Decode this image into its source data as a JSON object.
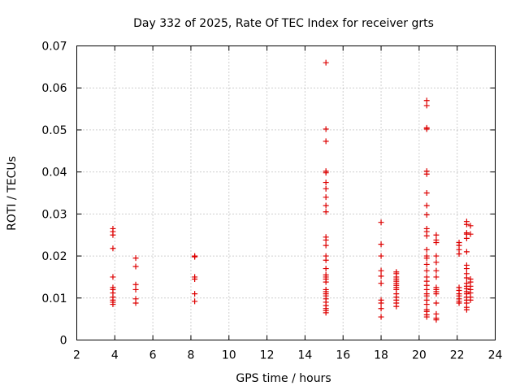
{
  "chart_data": {
    "type": "scatter",
    "title": "Day 332 of 2025, Rate Of TEC Index for receiver grts",
    "xlabel": "GPS time / hours",
    "ylabel": "ROTI / TECUs",
    "xlim": [
      2,
      24
    ],
    "ylim": [
      0,
      0.07
    ],
    "xticks": [
      2,
      4,
      6,
      8,
      10,
      12,
      14,
      16,
      18,
      20,
      22,
      24
    ],
    "yticks": [
      0,
      0.01,
      0.02,
      0.03,
      0.04,
      0.05,
      0.06,
      0.07
    ],
    "ytick_labels": [
      "0",
      "0.01",
      "0.02",
      "0.03",
      "0.04",
      "0.05",
      "0.06",
      "0.07"
    ],
    "grid": true,
    "marker": "+",
    "color": "#dd0000",
    "series": [
      {
        "points": [
          [
            3.9,
            0.0265
          ],
          [
            3.9,
            0.0258
          ],
          [
            3.9,
            0.025
          ],
          [
            3.9,
            0.0218
          ],
          [
            3.9,
            0.015
          ],
          [
            3.9,
            0.0125
          ],
          [
            3.9,
            0.012
          ],
          [
            3.9,
            0.0112
          ],
          [
            3.9,
            0.0102
          ],
          [
            3.9,
            0.0095
          ],
          [
            3.9,
            0.009
          ],
          [
            3.9,
            0.0085
          ],
          [
            5.1,
            0.0195
          ],
          [
            5.1,
            0.0175
          ],
          [
            5.1,
            0.0132
          ],
          [
            5.1,
            0.012
          ],
          [
            5.1,
            0.0098
          ],
          [
            5.1,
            0.0088
          ],
          [
            8.2,
            0.02
          ],
          [
            8.2,
            0.0198
          ],
          [
            8.2,
            0.015
          ],
          [
            8.2,
            0.0145
          ],
          [
            8.2,
            0.011
          ],
          [
            8.2,
            0.0092
          ],
          [
            15.1,
            0.066
          ],
          [
            15.1,
            0.0502
          ],
          [
            15.1,
            0.0473
          ],
          [
            15.1,
            0.0402
          ],
          [
            15.1,
            0.0398
          ],
          [
            15.1,
            0.0375
          ],
          [
            15.1,
            0.036
          ],
          [
            15.1,
            0.034
          ],
          [
            15.1,
            0.032
          ],
          [
            15.1,
            0.0305
          ],
          [
            15.1,
            0.0245
          ],
          [
            15.1,
            0.0238
          ],
          [
            15.1,
            0.0225
          ],
          [
            15.1,
            0.02
          ],
          [
            15.1,
            0.019
          ],
          [
            15.1,
            0.017
          ],
          [
            15.1,
            0.0155
          ],
          [
            15.1,
            0.015
          ],
          [
            15.1,
            0.0145
          ],
          [
            15.1,
            0.0138
          ],
          [
            15.1,
            0.012
          ],
          [
            15.1,
            0.0115
          ],
          [
            15.1,
            0.011
          ],
          [
            15.1,
            0.0105
          ],
          [
            15.1,
            0.0098
          ],
          [
            15.1,
            0.009
          ],
          [
            15.1,
            0.0082
          ],
          [
            15.1,
            0.0075
          ],
          [
            15.1,
            0.007
          ],
          [
            15.1,
            0.0065
          ],
          [
            18.0,
            0.028
          ],
          [
            18.0,
            0.0228
          ],
          [
            18.0,
            0.02
          ],
          [
            18.0,
            0.0165
          ],
          [
            18.0,
            0.0152
          ],
          [
            18.0,
            0.0135
          ],
          [
            18.0,
            0.0095
          ],
          [
            18.0,
            0.0088
          ],
          [
            18.0,
            0.0075
          ],
          [
            18.0,
            0.0055
          ],
          [
            18.8,
            0.0162
          ],
          [
            18.8,
            0.0158
          ],
          [
            18.8,
            0.015
          ],
          [
            18.8,
            0.0145
          ],
          [
            18.8,
            0.014
          ],
          [
            18.8,
            0.0135
          ],
          [
            18.8,
            0.013
          ],
          [
            18.8,
            0.0125
          ],
          [
            18.8,
            0.012
          ],
          [
            18.8,
            0.011
          ],
          [
            18.8,
            0.0102
          ],
          [
            18.8,
            0.0095
          ],
          [
            18.8,
            0.0088
          ],
          [
            18.8,
            0.008
          ],
          [
            20.4,
            0.057
          ],
          [
            20.4,
            0.0558
          ],
          [
            20.4,
            0.0505
          ],
          [
            20.4,
            0.0502
          ],
          [
            20.4,
            0.0402
          ],
          [
            20.4,
            0.0395
          ],
          [
            20.4,
            0.035
          ],
          [
            20.4,
            0.032
          ],
          [
            20.4,
            0.0298
          ],
          [
            20.4,
            0.0265
          ],
          [
            20.4,
            0.0258
          ],
          [
            20.4,
            0.0248
          ],
          [
            20.4,
            0.0215
          ],
          [
            20.4,
            0.02
          ],
          [
            20.4,
            0.0195
          ],
          [
            20.4,
            0.018
          ],
          [
            20.4,
            0.0165
          ],
          [
            20.4,
            0.015
          ],
          [
            20.4,
            0.014
          ],
          [
            20.4,
            0.013
          ],
          [
            20.4,
            0.012
          ],
          [
            20.4,
            0.011
          ],
          [
            20.4,
            0.0105
          ],
          [
            20.4,
            0.0095
          ],
          [
            20.4,
            0.0085
          ],
          [
            20.4,
            0.0072
          ],
          [
            20.4,
            0.0068
          ],
          [
            20.4,
            0.006
          ],
          [
            20.4,
            0.0055
          ],
          [
            20.9,
            0.025
          ],
          [
            20.9,
            0.0238
          ],
          [
            20.9,
            0.0232
          ],
          [
            20.9,
            0.02
          ],
          [
            20.9,
            0.0185
          ],
          [
            20.9,
            0.0165
          ],
          [
            20.9,
            0.015
          ],
          [
            20.9,
            0.0125
          ],
          [
            20.9,
            0.012
          ],
          [
            20.9,
            0.0115
          ],
          [
            20.9,
            0.011
          ],
          [
            20.9,
            0.0088
          ],
          [
            20.9,
            0.0062
          ],
          [
            20.9,
            0.0052
          ],
          [
            20.9,
            0.0048
          ],
          [
            22.1,
            0.0232
          ],
          [
            22.1,
            0.0225
          ],
          [
            22.1,
            0.0215
          ],
          [
            22.1,
            0.0205
          ],
          [
            22.1,
            0.0125
          ],
          [
            22.1,
            0.0118
          ],
          [
            22.1,
            0.011
          ],
          [
            22.1,
            0.0105
          ],
          [
            22.1,
            0.0098
          ],
          [
            22.1,
            0.0092
          ],
          [
            22.1,
            0.0088
          ],
          [
            22.5,
            0.0282
          ],
          [
            22.5,
            0.0275
          ],
          [
            22.5,
            0.0255
          ],
          [
            22.5,
            0.0252
          ],
          [
            22.5,
            0.0242
          ],
          [
            22.5,
            0.021
          ],
          [
            22.5,
            0.0178
          ],
          [
            22.5,
            0.017
          ],
          [
            22.5,
            0.0158
          ],
          [
            22.5,
            0.0148
          ],
          [
            22.5,
            0.0135
          ],
          [
            22.5,
            0.0128
          ],
          [
            22.5,
            0.0122
          ],
          [
            22.5,
            0.0115
          ],
          [
            22.5,
            0.011
          ],
          [
            22.5,
            0.0102
          ],
          [
            22.5,
            0.0095
          ],
          [
            22.5,
            0.0088
          ],
          [
            22.5,
            0.0078
          ],
          [
            22.5,
            0.0072
          ],
          [
            22.7,
            0.0272
          ],
          [
            22.7,
            0.0252
          ],
          [
            22.7,
            0.0145
          ],
          [
            22.7,
            0.0138
          ],
          [
            22.7,
            0.0128
          ],
          [
            22.7,
            0.012
          ],
          [
            22.7,
            0.0112
          ],
          [
            22.7,
            0.0102
          ],
          [
            22.7,
            0.0095
          ]
        ]
      }
    ]
  }
}
